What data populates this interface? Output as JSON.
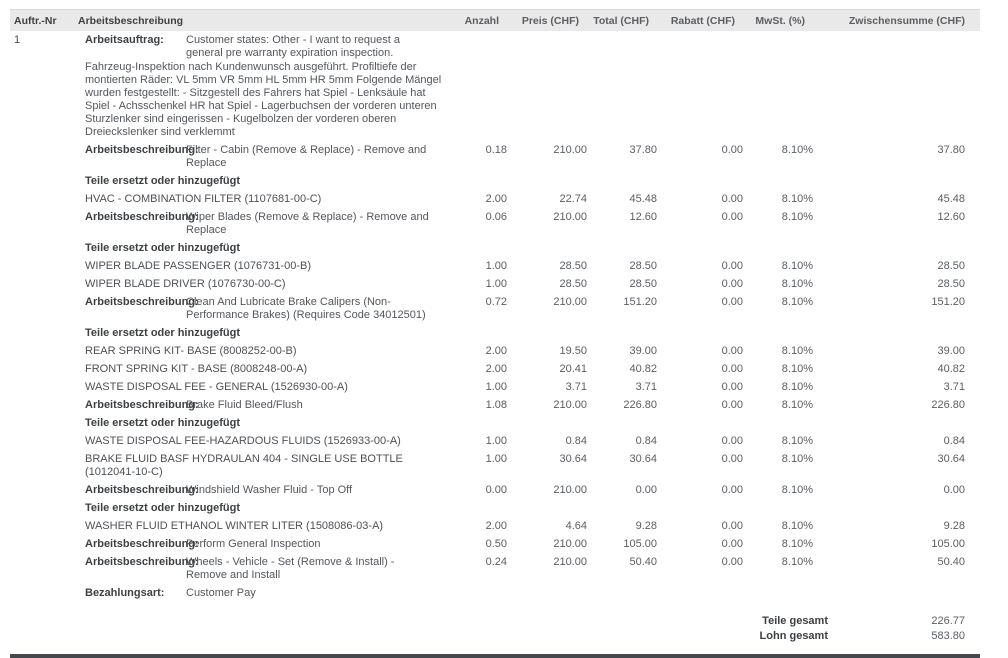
{
  "table": {
    "columns": [
      "Auftr.-Nr",
      "Arbeitsbeschreibung",
      "Anzahl",
      "Preis (CHF)",
      "Total (CHF)",
      "Rabatt (CHF)",
      "MwSt. (%)",
      "Zwischensumme (CHF)"
    ]
  },
  "rows": [
    {
      "type": "workorder",
      "auftr_nr": "1",
      "label": "Arbeitsauftrag:",
      "value": "Customer states: Other - I want to request a general pre warranty expiration inspection.",
      "note": "Fahrzeug-Inspektion nach Kundenwunsch ausgeführt. Profiltiefe der montierten Räder: VL 5mm VR 5mm HL 5mm HR 5mm Folgende Mängel wurden festgestellt: - Sitzgestell des Fahrers hat Spiel - Lenksäule hat Spiel - Achsschenkel HR hat Spiel - Lagerbuchsen der vorderen unteren Sturzlenker sind eingerissen - Kugelbolzen der vorderen oberen Dreieckslenker sind verklemmt"
    },
    {
      "type": "labor",
      "label": "Arbeitsbeschreibung:",
      "description": "Filter - Cabin (Remove & Replace) - Remove and Replace",
      "anzahl": "0.18",
      "preis": "210.00",
      "total": "37.80",
      "rabatt": "0.00",
      "mwst": "8.10%",
      "zwischensumme": "37.80"
    },
    {
      "type": "parts_header",
      "label": "Teile ersetzt oder hinzugefügt"
    },
    {
      "type": "part",
      "description": "HVAC - COMBINATION FILTER (1107681-00-C)",
      "anzahl": "2.00",
      "preis": "22.74",
      "total": "45.48",
      "rabatt": "0.00",
      "mwst": "8.10%",
      "zwischensumme": "45.48"
    },
    {
      "type": "labor",
      "label": "Arbeitsbeschreibung:",
      "description": "Wiper Blades (Remove & Replace) - Remove and Replace",
      "anzahl": "0.06",
      "preis": "210.00",
      "total": "12.60",
      "rabatt": "0.00",
      "mwst": "8.10%",
      "zwischensumme": "12.60"
    },
    {
      "type": "parts_header",
      "label": "Teile ersetzt oder hinzugefügt"
    },
    {
      "type": "part",
      "description": "WIPER BLADE PASSENGER (1076731-00-B)",
      "anzahl": "1.00",
      "preis": "28.50",
      "total": "28.50",
      "rabatt": "0.00",
      "mwst": "8.10%",
      "zwischensumme": "28.50"
    },
    {
      "type": "part",
      "description": "WIPER BLADE DRIVER (1076730-00-C)",
      "anzahl": "1.00",
      "preis": "28.50",
      "total": "28.50",
      "rabatt": "0.00",
      "mwst": "8.10%",
      "zwischensumme": "28.50"
    },
    {
      "type": "labor",
      "label": "Arbeitsbeschreibung:",
      "description": "Clean And Lubricate Brake Calipers (Non-Performance Brakes) (Requires Code 34012501)",
      "anzahl": "0.72",
      "preis": "210.00",
      "total": "151.20",
      "rabatt": "0.00",
      "mwst": "8.10%",
      "zwischensumme": "151.20"
    },
    {
      "type": "parts_header",
      "label": "Teile ersetzt oder hinzugefügt"
    },
    {
      "type": "part",
      "description": "REAR SPRING KIT- BASE (8008252-00-B)",
      "anzahl": "2.00",
      "preis": "19.50",
      "total": "39.00",
      "rabatt": "0.00",
      "mwst": "8.10%",
      "zwischensumme": "39.00"
    },
    {
      "type": "part",
      "description": "FRONT SPRING KIT - BASE (8008248-00-A)",
      "anzahl": "2.00",
      "preis": "20.41",
      "total": "40.82",
      "rabatt": "0.00",
      "mwst": "8.10%",
      "zwischensumme": "40.82"
    },
    {
      "type": "part",
      "description": "WASTE DISPOSAL FEE - GENERAL (1526930-00-A)",
      "anzahl": "1.00",
      "preis": "3.71",
      "total": "3.71",
      "rabatt": "0.00",
      "mwst": "8.10%",
      "zwischensumme": "3.71"
    },
    {
      "type": "labor",
      "label": "Arbeitsbeschreibung:",
      "description": "Brake Fluid Bleed/Flush",
      "anzahl": "1.08",
      "preis": "210.00",
      "total": "226.80",
      "rabatt": "0.00",
      "mwst": "8.10%",
      "zwischensumme": "226.80"
    },
    {
      "type": "parts_header",
      "label": "Teile ersetzt oder hinzugefügt"
    },
    {
      "type": "part",
      "description": "WASTE DISPOSAL FEE-HAZARDOUS FLUIDS (1526933-00-A)",
      "anzahl": "1.00",
      "preis": "0.84",
      "total": "0.84",
      "rabatt": "0.00",
      "mwst": "8.10%",
      "zwischensumme": "0.84"
    },
    {
      "type": "part",
      "description": "BRAKE FLUID BASF HYDRAULAN 404 - SINGLE USE BOTTLE (1012041-10-C)",
      "anzahl": "1.00",
      "preis": "30.64",
      "total": "30.64",
      "rabatt": "0.00",
      "mwst": "8.10%",
      "zwischensumme": "30.64"
    },
    {
      "type": "labor",
      "label": "Arbeitsbeschreibung:",
      "description": "Windshield Washer Fluid - Top Off",
      "anzahl": "0.00",
      "preis": "210.00",
      "total": "0.00",
      "rabatt": "0.00",
      "mwst": "8.10%",
      "zwischensumme": "0.00"
    },
    {
      "type": "parts_header",
      "label": "Teile ersetzt oder hinzugefügt"
    },
    {
      "type": "part",
      "description": "WASHER FLUID ETHANOL WINTER LITER (1508086-03-A)",
      "anzahl": "2.00",
      "preis": "4.64",
      "total": "9.28",
      "rabatt": "0.00",
      "mwst": "8.10%",
      "zwischensumme": "9.28"
    },
    {
      "type": "labor",
      "label": "Arbeitsbeschreibung:",
      "description": "Perform General Inspection",
      "anzahl": "0.50",
      "preis": "210.00",
      "total": "105.00",
      "rabatt": "0.00",
      "mwst": "8.10%",
      "zwischensumme": "105.00"
    },
    {
      "type": "labor",
      "label": "Arbeitsbeschreibung:",
      "description": "Wheels - Vehicle - Set (Remove & Install) - Remove and Install",
      "anzahl": "0.24",
      "preis": "210.00",
      "total": "50.40",
      "rabatt": "0.00",
      "mwst": "8.10%",
      "zwischensumme": "50.40"
    },
    {
      "type": "payment",
      "label": "Bezahlungsart:",
      "value": "Customer Pay"
    }
  ],
  "totals": [
    {
      "label": "Teile gesamt",
      "value": "226.77"
    },
    {
      "label": "Lohn gesamt",
      "value": "583.80"
    }
  ],
  "colors": {
    "header_bg": "#e9e9e9",
    "text_dark": "#3d4144",
    "text_gray": "#5a5e63",
    "bottom_border": "#45494d"
  }
}
